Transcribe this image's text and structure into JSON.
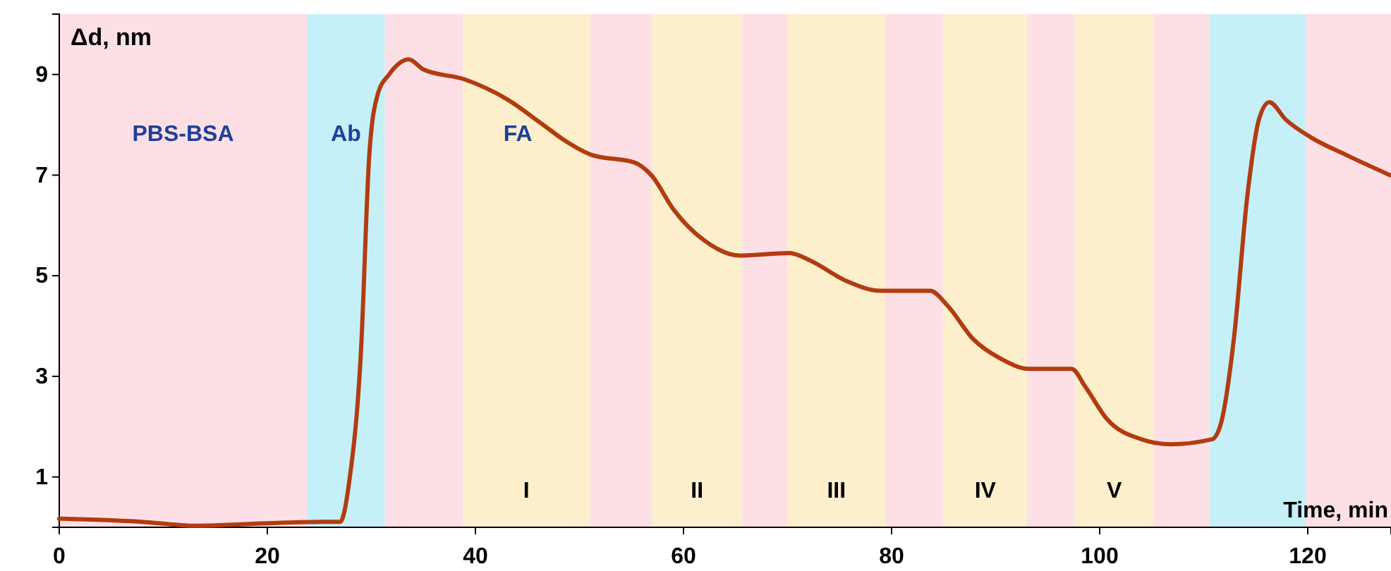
{
  "chart_data": {
    "type": "line",
    "xlabel": "Time, min",
    "ylabel": "Δd, nm",
    "x": [
      0,
      7.9,
      13.3,
      20,
      25.5,
      27,
      27.9,
      29,
      29.8,
      30.6,
      31.7,
      33.6,
      35,
      39,
      43.1,
      46.5,
      48.5,
      51.2,
      55.3,
      56.9,
      59.1,
      62,
      65.4,
      70.2,
      72.2,
      75.6,
      79,
      83.7,
      85.4,
      87.8,
      90.5,
      93.2,
      97.3,
      98.6,
      100.7,
      104,
      106.8,
      110.8,
      111.7,
      112.9,
      114.2,
      115.3,
      116.3,
      117.9,
      120.3,
      123.7,
      127.9
    ],
    "series": [
      {
        "color": "#b23c10",
        "values": [
          0.17,
          0.11,
          0.03,
          0.08,
          0.11,
          0.11,
          0.95,
          3.5,
          7.4,
          8.6,
          9.0,
          9.3,
          9.1,
          8.9,
          8.5,
          8.0,
          7.7,
          7.4,
          7.25,
          7.0,
          6.3,
          5.7,
          5.4,
          5.45,
          5.3,
          4.9,
          4.7,
          4.7,
          4.4,
          3.75,
          3.35,
          3.15,
          3.15,
          2.8,
          2.15,
          1.75,
          1.65,
          1.75,
          2.1,
          3.75,
          6.6,
          8.1,
          8.45,
          8.1,
          7.75,
          7.4,
          7.0
        ]
      }
    ],
    "xlim": [
      0,
      128
    ],
    "ylim": [
      0,
      10.2
    ],
    "xticks": [
      0,
      20,
      40,
      60,
      80,
      100,
      120
    ],
    "yticks": [
      1,
      3,
      5,
      7,
      9
    ],
    "grid": false,
    "line_style": "solid",
    "marker": "none",
    "bands": [
      {
        "axis": "x",
        "from": 0,
        "to": 23.8,
        "color": "#fde0e6",
        "label": "PBS-BSA"
      },
      {
        "axis": "x",
        "from": 23.8,
        "to": 31.3,
        "color": "#c6f0f8",
        "label": "Ab"
      },
      {
        "axis": "x",
        "from": 31.3,
        "to": 38.8,
        "color": "#fde0e6"
      },
      {
        "axis": "x",
        "from": 38.8,
        "to": 51,
        "color": "#fdefcc",
        "label": "I"
      },
      {
        "axis": "x",
        "from": 51,
        "to": 57,
        "color": "#fde0e6"
      },
      {
        "axis": "x",
        "from": 57,
        "to": 65.6,
        "color": "#fdefcc",
        "label": "II"
      },
      {
        "axis": "x",
        "from": 65.6,
        "to": 70,
        "color": "#fde0e6"
      },
      {
        "axis": "x",
        "from": 70,
        "to": 79.4,
        "color": "#fdefcc",
        "label": "III"
      },
      {
        "axis": "x",
        "from": 79.4,
        "to": 85,
        "color": "#fde0e6"
      },
      {
        "axis": "x",
        "from": 85,
        "to": 93,
        "color": "#fdefcc",
        "label": "IV"
      },
      {
        "axis": "x",
        "from": 93,
        "to": 97.6,
        "color": "#fde0e6"
      },
      {
        "axis": "x",
        "from": 97.6,
        "to": 105.2,
        "color": "#fdefcc",
        "label": "V"
      },
      {
        "axis": "x",
        "from": 105.2,
        "to": 110.6,
        "color": "#fde0e6"
      },
      {
        "axis": "x",
        "from": 110.6,
        "to": 119.8,
        "color": "#c6f0f8"
      },
      {
        "axis": "x",
        "from": 119.8,
        "to": 128,
        "color": "#fde0e6"
      }
    ],
    "annotations": [
      "FA"
    ]
  }
}
